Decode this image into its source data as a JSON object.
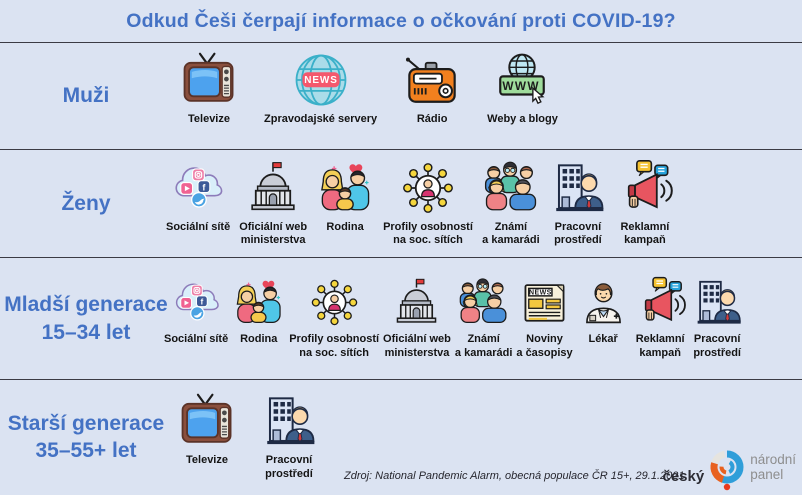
{
  "title": "Odkud Češi čerpají informace o očkování proti COVID-19?",
  "rows": [
    {
      "label": "Muži",
      "items": [
        {
          "icon": "tv-icon",
          "label": "Televize"
        },
        {
          "icon": "news-globe-icon",
          "label": "Zpravodajské servery"
        },
        {
          "icon": "radio-icon",
          "label": "Rádio"
        },
        {
          "icon": "www-icon",
          "label": "Weby a blogy"
        }
      ]
    },
    {
      "label": "Ženy",
      "items": [
        {
          "icon": "social-cloud-icon",
          "label": "Sociální sítě"
        },
        {
          "icon": "ministry-icon",
          "label": "Oficiální web\nministerstva"
        },
        {
          "icon": "family-icon",
          "label": "Rodina"
        },
        {
          "icon": "profiles-icon",
          "label": "Profily osobností\nna soc. sítích"
        },
        {
          "icon": "friends-icon",
          "label": "Známí\na kamarádi"
        },
        {
          "icon": "work-icon",
          "label": "Pracovní\nprostředí"
        },
        {
          "icon": "megaphone-icon",
          "label": "Reklamní\nkampaň"
        }
      ]
    },
    {
      "label": "Mladší generace\n15–34 let",
      "items": [
        {
          "icon": "social-cloud-icon",
          "label": "Sociální sítě"
        },
        {
          "icon": "family-icon",
          "label": "Rodina"
        },
        {
          "icon": "profiles-icon",
          "label": "Profily osobností\nna soc. sítích"
        },
        {
          "icon": "ministry-icon",
          "label": "Oficiální web\nministerstva"
        },
        {
          "icon": "friends-icon",
          "label": "Známí\na kamarádi"
        },
        {
          "icon": "newspaper-icon",
          "label": "Noviny\na časopisy"
        },
        {
          "icon": "doctor-icon",
          "label": "Lékař"
        },
        {
          "icon": "megaphone-icon",
          "label": "Reklamní\nkampaň"
        },
        {
          "icon": "work-icon",
          "label": "Pracovní\nprostředí"
        }
      ]
    },
    {
      "label": "Starší generace\n35–55+ let",
      "items": [
        {
          "icon": "tv-icon",
          "label": "Televize"
        },
        {
          "icon": "work-icon",
          "label": "Pracovní\nprostředí"
        }
      ]
    }
  ],
  "source": "Zdroj: National Pandemic Alarm, obecná populace ČR 15+, 29.1.2021",
  "logo": {
    "cesky": "český",
    "narodni": "národní",
    "panel": "panel"
  },
  "colors": {
    "background": "#dbe3f2",
    "accent_blue": "#4472c4",
    "divider": "#3b3b44",
    "item_label": "#141414",
    "logo_blue": "#2f9ed9",
    "logo_orange": "#e8611f",
    "logo_red": "#e8391d"
  }
}
